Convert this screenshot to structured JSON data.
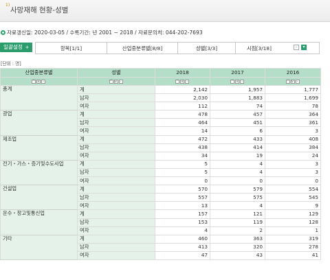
{
  "title": {
    "number": "1)",
    "text": "사망재해 현황-성별"
  },
  "info": "자료갱신일: 2020-03-05 / 수록기간: 년 2001 ~ 2018 / 자료문의처: 044-202-7693",
  "tabs": {
    "main": "일괄설정",
    "items": [
      "항목[1/1]",
      "산업중분류별[8/8]",
      "성별[3/3]",
      "시점[3/18]"
    ]
  },
  "unit": "[단위 : 명]",
  "table": {
    "headers": [
      "산업중분류별",
      "성별",
      "2018",
      "2017",
      "2016"
    ],
    "groups": [
      {
        "category": "총계",
        "rows": [
          {
            "sex": "계",
            "v": [
              "2,142",
              "1,957",
              "1,777"
            ]
          },
          {
            "sex": "남자",
            "v": [
              "2,030",
              "1,883",
              "1,699"
            ]
          },
          {
            "sex": "여자",
            "v": [
              "112",
              "74",
              "78"
            ]
          }
        ]
      },
      {
        "category": "광업",
        "rows": [
          {
            "sex": "계",
            "v": [
              "478",
              "457",
              "364"
            ]
          },
          {
            "sex": "남자",
            "v": [
              "464",
              "451",
              "361"
            ]
          },
          {
            "sex": "여자",
            "v": [
              "14",
              "6",
              "3"
            ]
          }
        ]
      },
      {
        "category": "제조업",
        "rows": [
          {
            "sex": "계",
            "v": [
              "472",
              "433",
              "408"
            ]
          },
          {
            "sex": "남자",
            "v": [
              "438",
              "414",
              "384"
            ]
          },
          {
            "sex": "여자",
            "v": [
              "34",
              "19",
              "24"
            ]
          }
        ]
      },
      {
        "category": "전기・가스・증기및수도사업",
        "rows": [
          {
            "sex": "계",
            "v": [
              "5",
              "4",
              "3"
            ]
          },
          {
            "sex": "남자",
            "v": [
              "5",
              "4",
              "3"
            ]
          },
          {
            "sex": "여자",
            "v": [
              "0",
              "0",
              "0"
            ]
          }
        ]
      },
      {
        "category": "건설업",
        "rows": [
          {
            "sex": "계",
            "v": [
              "570",
              "579",
              "554"
            ]
          },
          {
            "sex": "남자",
            "v": [
              "557",
              "575",
              "545"
            ]
          },
          {
            "sex": "여자",
            "v": [
              "13",
              "4",
              "9"
            ]
          }
        ]
      },
      {
        "category": "운수・창고및통신업",
        "rows": [
          {
            "sex": "계",
            "v": [
              "157",
              "121",
              "129"
            ]
          },
          {
            "sex": "남자",
            "v": [
              "153",
              "119",
              "128"
            ]
          },
          {
            "sex": "여자",
            "v": [
              "4",
              "2",
              "1"
            ]
          }
        ]
      },
      {
        "category": "기타",
        "rows": [
          {
            "sex": "계",
            "v": [
              "460",
              "363",
              "319"
            ]
          },
          {
            "sex": "남자",
            "v": [
              "413",
              "320",
              "278"
            ]
          },
          {
            "sex": "여자",
            "v": [
              "47",
              "43",
              "41"
            ]
          }
        ]
      }
    ]
  },
  "colors": {
    "accent": "#2c9c6c",
    "header_bg": "#b5dec8",
    "row_bg": "#e4f2e9"
  }
}
